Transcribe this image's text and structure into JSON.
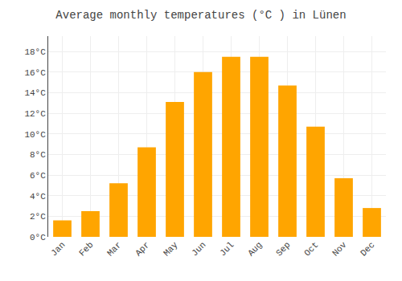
{
  "chart_data": {
    "type": "bar",
    "title": "Average monthly temperatures (°C ) in Lünen",
    "categories": [
      "Jan",
      "Feb",
      "Mar",
      "Apr",
      "May",
      "Jun",
      "Jul",
      "Aug",
      "Sep",
      "Oct",
      "Nov",
      "Dec"
    ],
    "values": [
      1.6,
      2.5,
      5.2,
      8.7,
      13.1,
      16.0,
      17.5,
      17.5,
      14.7,
      10.7,
      5.7,
      2.8
    ],
    "color": "#FFA500",
    "ylim": [
      0,
      19.5
    ],
    "yticks": [
      {
        "value": 0,
        "label": "0°C"
      },
      {
        "value": 2,
        "label": "2°C"
      },
      {
        "value": 4,
        "label": "4°C"
      },
      {
        "value": 6,
        "label": "6°C"
      },
      {
        "value": 8,
        "label": "8°C"
      },
      {
        "value": 10,
        "label": "10°C"
      },
      {
        "value": 12,
        "label": "12°C"
      },
      {
        "value": 14,
        "label": "14°C"
      },
      {
        "value": 16,
        "label": "16°C"
      },
      {
        "value": 18,
        "label": "18°C"
      }
    ],
    "grid": true
  }
}
